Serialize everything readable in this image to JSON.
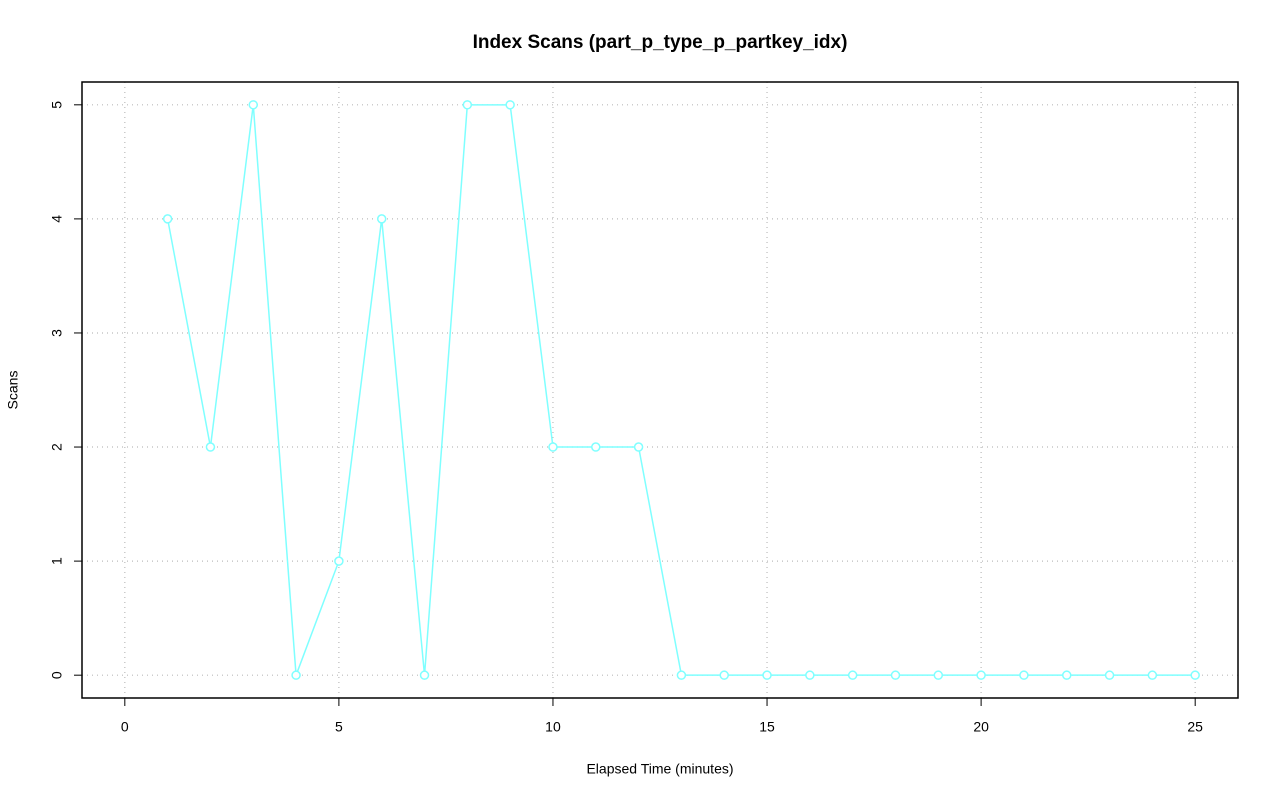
{
  "chart_data": {
    "type": "line",
    "title": "Index Scans (part_p_type_p_partkey_idx)",
    "xlabel": "Elapsed Time (minutes)",
    "ylabel": "Scans",
    "x": [
      1,
      2,
      3,
      4,
      5,
      6,
      7,
      8,
      9,
      10,
      11,
      12,
      13,
      14,
      15,
      16,
      17,
      18,
      19,
      20,
      21,
      22,
      23,
      24,
      25
    ],
    "values": [
      4,
      2,
      5,
      0,
      1,
      4,
      0,
      5,
      5,
      2,
      2,
      2,
      0,
      0,
      0,
      0,
      0,
      0,
      0,
      0,
      0,
      0,
      0,
      0,
      0
    ],
    "color": "#7fffff",
    "xlim": [
      -1,
      26
    ],
    "ylim": [
      -0.2,
      5.2
    ],
    "xticks": [
      0,
      5,
      10,
      15,
      20,
      25
    ],
    "yticks": [
      0,
      1,
      2,
      3,
      4,
      5
    ],
    "grid": true
  }
}
